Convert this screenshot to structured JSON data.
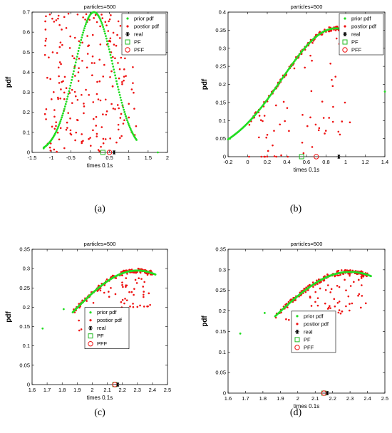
{
  "chart_data": [
    {
      "panel": "(a)",
      "type": "scatter",
      "title": "particles=500",
      "xlabel": "times  0.1s",
      "ylabel": "pdf",
      "xlim": [
        -1.5,
        2
      ],
      "ylim": [
        0,
        0.7
      ],
      "xticks": [
        "-1.5",
        "-1",
        "-0.5",
        "0",
        "0.5",
        "1",
        "1.5",
        "2"
      ],
      "yticks": [
        "0",
        "0.1",
        "0.2",
        "0.3",
        "0.4",
        "0.5",
        "0.6",
        "0.7"
      ],
      "legend_position": "top-right",
      "prior_curve": {
        "kind": "gaussian",
        "amplitude": 0.7,
        "mean": 0.1,
        "sigma": 0.5,
        "x_range": [
          -1.2,
          1.2
        ]
      },
      "posterior_range": {
        "x": [
          -1.2,
          1.2
        ],
        "y": [
          0.0,
          0.7
        ]
      },
      "extra_prior_points": [
        [
          -1.2,
          0.02
        ],
        [
          1.75,
          0.0
        ]
      ],
      "markers": {
        "real": [
          0.62,
          0.0
        ],
        "PF": [
          0.33,
          0.0
        ],
        "PFF": [
          0.5,
          0.0
        ]
      },
      "series": [
        {
          "name": "prior pdf",
          "color": "#22dd22",
          "marker": "dot"
        },
        {
          "name": "postior pdf",
          "color": "#ee1111",
          "marker": "dot"
        },
        {
          "name": "real",
          "color": "#000000",
          "marker": "asterisk"
        },
        {
          "name": "PF",
          "color": "#22bb22",
          "marker": "square"
        },
        {
          "name": "PFF",
          "color": "#ee1111",
          "marker": "circle"
        }
      ]
    },
    {
      "panel": "(b)",
      "type": "scatter",
      "title": "particles=500",
      "xlabel": "times  0.1s",
      "ylabel": "pdf",
      "xlim": [
        -0.2,
        1.4
      ],
      "ylim": [
        0,
        0.4
      ],
      "xticks": [
        "-0.2",
        "0",
        "0.2",
        "0.4",
        "0.6",
        "0.8",
        "1",
        "1.2",
        "1.4"
      ],
      "yticks": [
        "0",
        "0.05",
        "0.1",
        "0.15",
        "0.2",
        "0.25",
        "0.3",
        "0.35",
        "0.4"
      ],
      "legend_position": "top-right",
      "prior_curve": {
        "kind": "gaussian",
        "amplitude": 0.355,
        "mean": 0.9,
        "sigma": 0.55,
        "x_range": [
          -0.2,
          0.95
        ]
      },
      "posterior_range": {
        "x": [
          0.0,
          1.05
        ],
        "y": [
          0.0,
          0.36
        ]
      },
      "extra_prior_points": [
        [
          -0.18,
          0.05
        ],
        [
          1.4,
          0.18
        ]
      ],
      "markers": {
        "real": [
          0.93,
          0.0
        ],
        "PF": [
          0.55,
          0.0
        ],
        "PFF": [
          0.7,
          0.0
        ]
      },
      "series": [
        {
          "name": "prior pdf",
          "color": "#22dd22",
          "marker": "dot"
        },
        {
          "name": "postior pdf",
          "color": "#ee1111",
          "marker": "dot"
        },
        {
          "name": "real",
          "color": "#000000",
          "marker": "asterisk"
        },
        {
          "name": "PF",
          "color": "#22bb22",
          "marker": "square"
        },
        {
          "name": "PFF",
          "color": "#ee1111",
          "marker": "circle"
        }
      ]
    },
    {
      "panel": "(c)",
      "type": "scatter",
      "title": "particles=500",
      "xlabel": "times  0.1s",
      "ylabel": "pdf",
      "xlim": [
        1.6,
        2.5
      ],
      "ylim": [
        0,
        0.35
      ],
      "xticks": [
        "1.6",
        "1.7",
        "1.8",
        "1.9",
        "2",
        "2.1",
        "2.2",
        "2.3",
        "2.4",
        "2.5"
      ],
      "yticks": [
        "0",
        "0.05",
        "0.1",
        "0.15",
        "0.2",
        "0.25",
        "0.3",
        "0.35"
      ],
      "legend_position": "center",
      "prior_curve": {
        "kind": "gaussian",
        "amplitude": 0.295,
        "mean": 2.3,
        "sigma": 0.45,
        "x_range": [
          1.87,
          2.42
        ]
      },
      "posterior_range": {
        "x": [
          1.87,
          2.4
        ],
        "y": [
          0.14,
          0.3
        ]
      },
      "extra_prior_points": [
        [
          1.67,
          0.145
        ],
        [
          1.81,
          0.195
        ]
      ],
      "markers": {
        "real": [
          2.17,
          0.0
        ],
        "PF": [
          2.15,
          0.0
        ],
        "PFF": [
          2.15,
          0.0
        ]
      },
      "series": [
        {
          "name": "prior pdf",
          "color": "#22dd22",
          "marker": "dot"
        },
        {
          "name": "postior pdf",
          "color": "#ee1111",
          "marker": "dot"
        },
        {
          "name": "real",
          "color": "#000000",
          "marker": "asterisk"
        },
        {
          "name": "PF",
          "color": "#22bb22",
          "marker": "square"
        },
        {
          "name": "PFF",
          "color": "#ee1111",
          "marker": "circle"
        }
      ]
    },
    {
      "panel": "(d)",
      "type": "scatter",
      "title": "particles=500",
      "xlabel": "times  0.1s",
      "ylabel": "pdf",
      "xlim": [
        1.6,
        2.5
      ],
      "ylim": [
        0,
        0.35
      ],
      "xticks": [
        "1.6",
        "1.7",
        "1.8",
        "1.9",
        "2",
        "2.1",
        "2.2",
        "2.3",
        "2.4",
        "2.5"
      ],
      "yticks": [
        "0",
        "0.05",
        "0.1",
        "0.15",
        "0.2",
        "0.25",
        "0.3",
        "0.35"
      ],
      "legend_position": "center",
      "prior_curve": {
        "kind": "gaussian",
        "amplitude": 0.295,
        "mean": 2.3,
        "sigma": 0.45,
        "x_range": [
          1.87,
          2.42
        ]
      },
      "posterior_range": {
        "x": [
          1.87,
          2.4
        ],
        "y": [
          0.14,
          0.3
        ]
      },
      "extra_prior_points": [
        [
          1.67,
          0.145
        ],
        [
          1.81,
          0.195
        ]
      ],
      "markers": {
        "real": [
          2.17,
          0.0
        ],
        "PF": [
          2.15,
          0.0
        ],
        "PFF": [
          2.15,
          0.0
        ]
      },
      "series": [
        {
          "name": "prior pdf",
          "color": "#22dd22",
          "marker": "dot"
        },
        {
          "name": "postior pdf",
          "color": "#ee1111",
          "marker": "dot"
        },
        {
          "name": "real",
          "color": "#000000",
          "marker": "asterisk"
        },
        {
          "name": "PF",
          "color": "#22bb22",
          "marker": "square"
        },
        {
          "name": "PFF",
          "color": "#ee1111",
          "marker": "circle"
        }
      ]
    }
  ]
}
